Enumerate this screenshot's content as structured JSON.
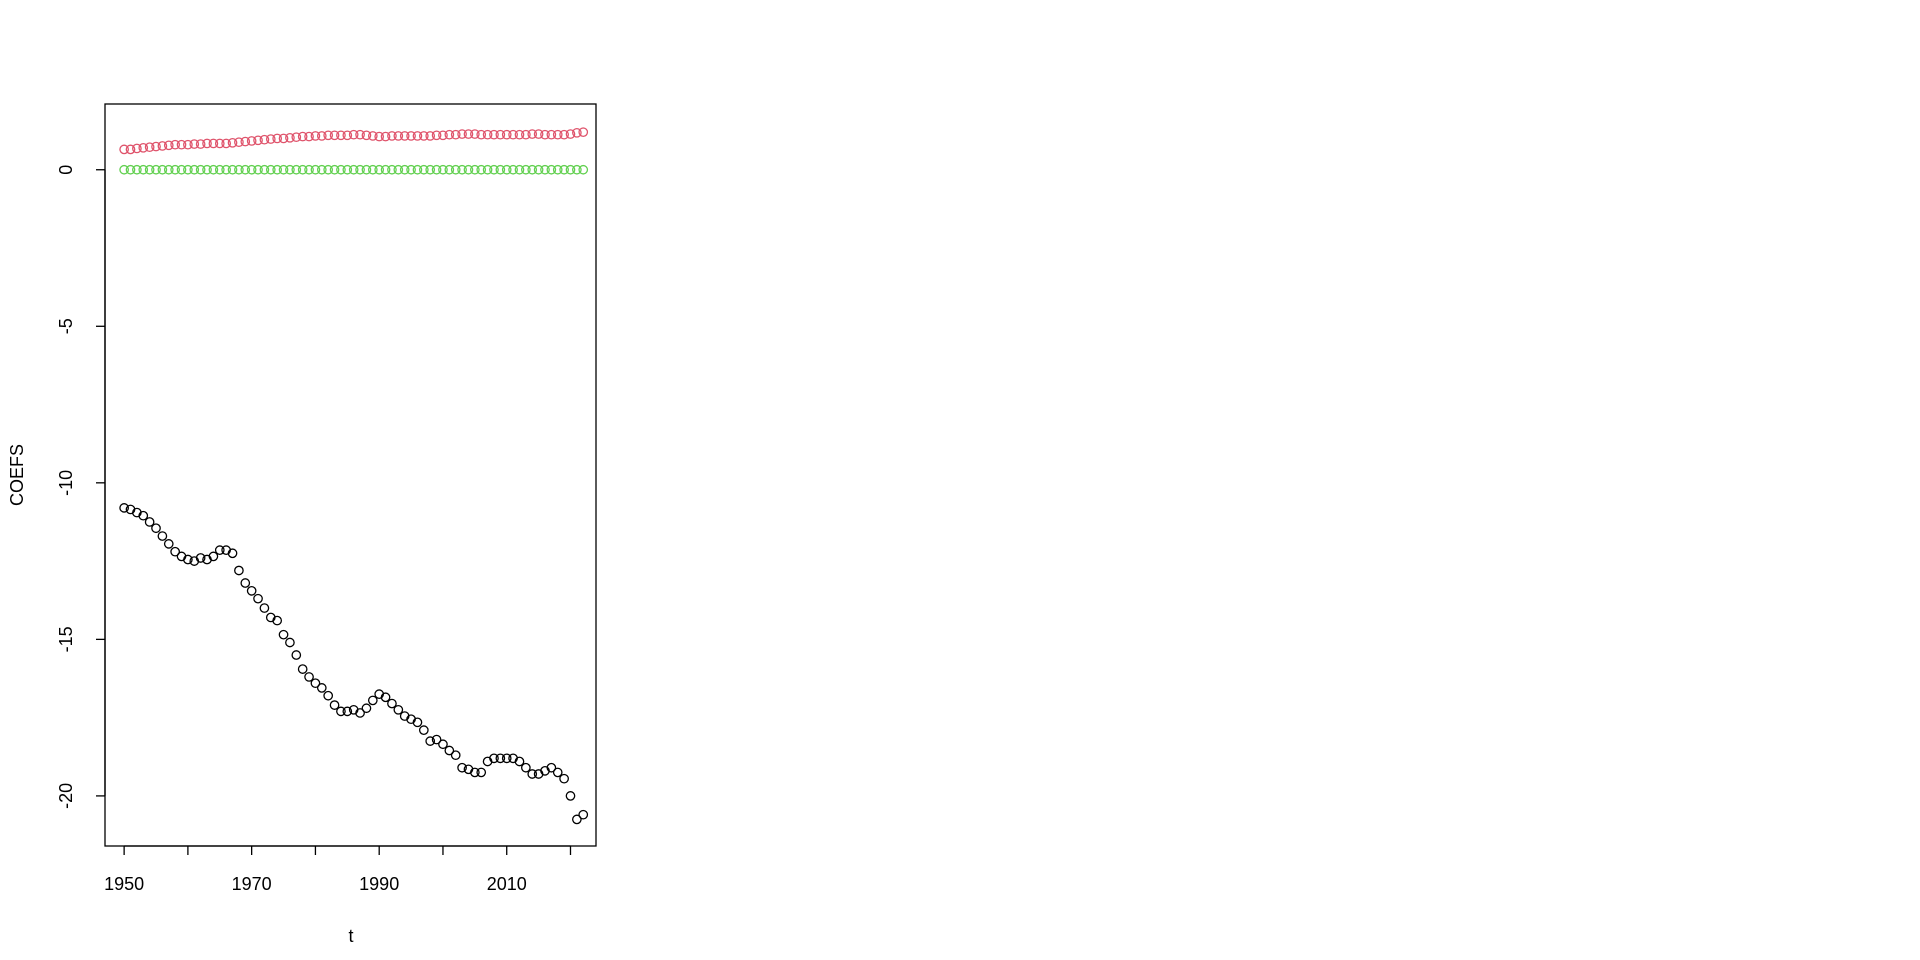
{
  "chart_data": {
    "type": "scatter",
    "title": "",
    "xlabel": "t",
    "ylabel": "COEFS",
    "xlim": [
      1947,
      2024
    ],
    "ylim": [
      -21.6,
      2.1
    ],
    "xticks": [
      1950,
      1960,
      1970,
      1980,
      1990,
      2000,
      2010,
      2020
    ],
    "xtick_labels": [
      "1950",
      "",
      "1970",
      "",
      "1990",
      "",
      "2010",
      ""
    ],
    "yticks": [
      0,
      -5,
      -10,
      -15,
      -20
    ],
    "ytick_labels": [
      "0",
      "-5",
      "-10",
      "-15",
      "-20"
    ],
    "grid": false,
    "x": [
      1950,
      1951,
      1952,
      1953,
      1954,
      1955,
      1956,
      1957,
      1958,
      1959,
      1960,
      1961,
      1962,
      1963,
      1964,
      1965,
      1966,
      1967,
      1968,
      1969,
      1970,
      1971,
      1972,
      1973,
      1974,
      1975,
      1976,
      1977,
      1978,
      1979,
      1980,
      1981,
      1982,
      1983,
      1984,
      1985,
      1986,
      1987,
      1988,
      1989,
      1990,
      1991,
      1992,
      1993,
      1994,
      1995,
      1996,
      1997,
      1998,
      1999,
      2000,
      2001,
      2002,
      2003,
      2004,
      2005,
      2006,
      2007,
      2008,
      2009,
      2010,
      2011,
      2012,
      2013,
      2014,
      2015,
      2016,
      2017,
      2018,
      2019,
      2020,
      2021,
      2022
    ],
    "series": [
      {
        "color": "#000000",
        "values": [
          -10.8,
          -10.85,
          -10.95,
          -11.05,
          -11.25,
          -11.45,
          -11.7,
          -11.95,
          -12.2,
          -12.35,
          -12.45,
          -12.5,
          -12.4,
          -12.45,
          -12.35,
          -12.15,
          -12.15,
          -12.25,
          -12.8,
          -13.2,
          -13.45,
          -13.7,
          -14.0,
          -14.3,
          -14.4,
          -14.85,
          -15.1,
          -15.5,
          -15.95,
          -16.2,
          -16.4,
          -16.55,
          -16.8,
          -17.1,
          -17.3,
          -17.3,
          -17.25,
          -17.35,
          -17.2,
          -16.95,
          -16.75,
          -16.85,
          -17.05,
          -17.25,
          -17.45,
          -17.55,
          -17.65,
          -17.9,
          -18.25,
          -18.2,
          -18.35,
          -18.55,
          -18.7,
          -19.1,
          -19.15,
          -19.25,
          -19.25,
          -18.9,
          -18.8,
          -18.8,
          -18.8,
          -18.8,
          -18.9,
          -19.1,
          -19.3,
          -19.3,
          -19.2,
          -19.1,
          -19.25,
          -19.45,
          -20.0,
          -20.75,
          -20.6
        ]
      },
      {
        "color": "#DF536B",
        "values": [
          0.65,
          0.65,
          0.68,
          0.7,
          0.72,
          0.74,
          0.76,
          0.78,
          0.8,
          0.8,
          0.8,
          0.82,
          0.82,
          0.84,
          0.84,
          0.84,
          0.84,
          0.86,
          0.88,
          0.9,
          0.92,
          0.94,
          0.96,
          0.98,
          1.0,
          1.0,
          1.02,
          1.04,
          1.06,
          1.06,
          1.08,
          1.08,
          1.1,
          1.1,
          1.1,
          1.1,
          1.12,
          1.12,
          1.1,
          1.08,
          1.06,
          1.06,
          1.08,
          1.08,
          1.08,
          1.08,
          1.08,
          1.08,
          1.08,
          1.1,
          1.1,
          1.12,
          1.12,
          1.14,
          1.14,
          1.14,
          1.12,
          1.12,
          1.12,
          1.12,
          1.12,
          1.12,
          1.12,
          1.12,
          1.14,
          1.14,
          1.12,
          1.12,
          1.12,
          1.12,
          1.14,
          1.18,
          1.2
        ]
      },
      {
        "color": "#61D04F",
        "values": [
          0,
          0,
          0,
          0,
          0,
          0,
          0,
          0,
          0,
          0,
          0,
          0,
          0,
          0,
          0,
          0,
          0,
          0,
          0,
          0,
          0,
          0,
          0,
          0,
          0,
          0,
          0,
          0,
          0,
          0,
          0,
          0,
          0,
          0,
          0,
          0,
          0,
          0,
          0,
          0,
          0,
          0,
          0,
          0,
          0,
          0,
          0,
          0,
          0,
          0,
          0,
          0,
          0,
          0,
          0,
          0,
          0,
          0,
          0,
          0,
          0,
          0,
          0,
          0,
          0,
          0,
          0,
          0,
          0,
          0,
          0,
          0,
          0
        ]
      }
    ]
  }
}
